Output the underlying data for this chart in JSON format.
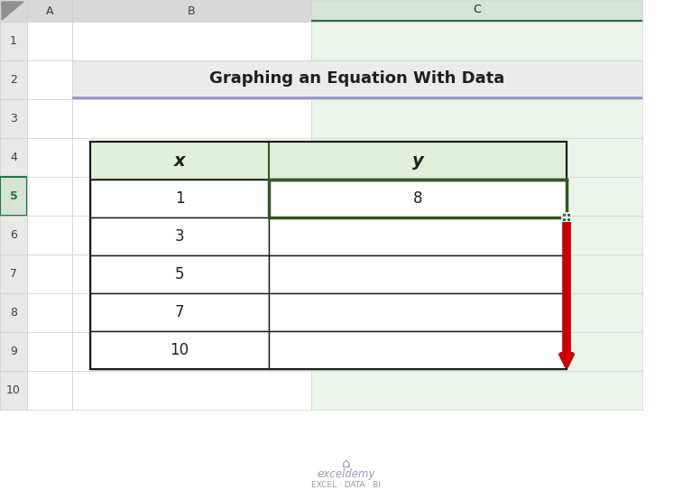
{
  "title": "Graphing an Equation With Data",
  "x_values": [
    "1",
    "3",
    "5",
    "7",
    "10"
  ],
  "y_values": [
    "8",
    "",
    "",
    "",
    ""
  ],
  "col_letters": [
    "A",
    "B",
    "C"
  ],
  "row_numbers": [
    "1",
    "2",
    "3",
    "4",
    "5",
    "6",
    "7",
    "8",
    "9",
    "10"
  ],
  "bg_color": "#FFFFFF",
  "spreadsheet_bg": "#F2F2F2",
  "col_header_bg": "#D8D8D8",
  "col_header_selected_bg": "#D6E4D6",
  "col_header_border": "#217346",
  "row_header_bg": "#E8E8E8",
  "row_header_selected_bg": "#D6E4D6",
  "row_header_border_color": "#217346",
  "grid_line_color": "#D0D0D0",
  "cell_bg": "#FFFFFF",
  "selected_col_bg": "#EAF4EA",
  "title_cell_bg": "#EBEBEB",
  "title_underline_color": "#9999CC",
  "title_font_color": "#1F1F1F",
  "table_header_bg": "#E2EFDA",
  "table_header_border": "#375623",
  "table_cell_border": "#1A1A1A",
  "arrow_color": "#CC0000",
  "fill_handle_bg": "#217346",
  "watermark_color": "#9999BB",
  "corner_triangle_color": "#909090"
}
